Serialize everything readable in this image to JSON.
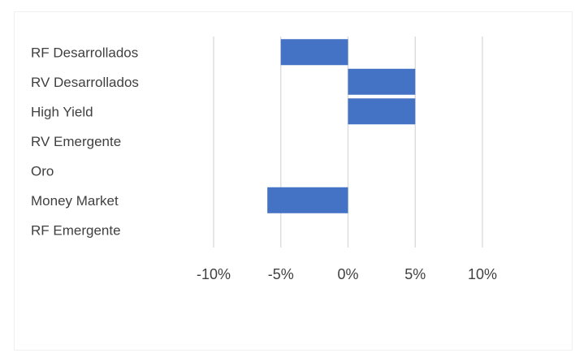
{
  "chart_data": {
    "type": "bar",
    "orientation": "horizontal",
    "categories": [
      "RF Desarrollados",
      "RV Desarrollados",
      "High Yield",
      "RV Emergente",
      "Oro",
      "Money Market",
      "RF Emergente"
    ],
    "values": [
      -5,
      5,
      5,
      0,
      0,
      -6,
      0
    ],
    "xlim": [
      -10,
      10
    ],
    "x_ticks": [
      -10,
      -5,
      0,
      5,
      10
    ],
    "tick_labels": [
      "-10%",
      "-5%",
      "0%",
      "5%",
      "10%"
    ],
    "grid": true,
    "bar_color": "#4472c4",
    "title": "",
    "xlabel": "",
    "ylabel": ""
  }
}
